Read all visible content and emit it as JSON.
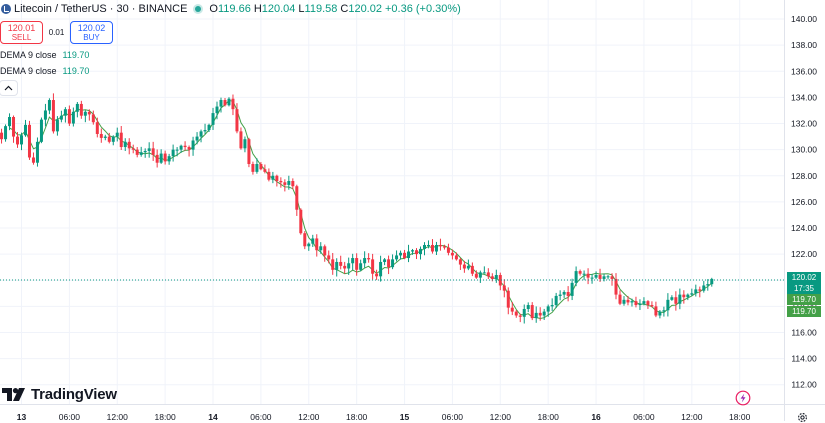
{
  "header": {
    "symbol": "Litecoin / TetherUS · 30 · BINANCE",
    "open_label": "O",
    "open": "119.66",
    "high_label": "H",
    "high": "120.04",
    "low_label": "L",
    "low": "119.58",
    "close_label": "C",
    "close": "120.02",
    "change": "+0.36 (+0.30%)"
  },
  "trade": {
    "sell_price": "120.01",
    "sell_label": "SELL",
    "spread": "0.01",
    "buy_price": "120.02",
    "buy_label": "BUY"
  },
  "indicators": [
    {
      "name": "DEMA 9 close",
      "value": "119.70"
    },
    {
      "name": "DEMA 9 close",
      "value": "119.70"
    }
  ],
  "price_labels": {
    "last": "120.02",
    "countdown": "17:35",
    "dema_1": "119.70",
    "dema_2": "119.70"
  },
  "branding": {
    "name": "TradingView"
  },
  "icons": {
    "collapse": "chevron-up-icon",
    "flash": "lightning-icon",
    "settings": "gear-icon"
  },
  "colors": {
    "up": "#089981",
    "down": "#f23645",
    "dema_line": "#43a047",
    "grid": "#f0f3fa",
    "axis_text": "#131722",
    "last_price_label": "#089981",
    "dema_label": "#43a047"
  },
  "chart_data": {
    "type": "candlestick",
    "y_ticks": [
      "112.00",
      "114.00",
      "116.00",
      "118.00",
      "120.00",
      "122.00",
      "124.00",
      "126.00",
      "128.00",
      "130.00",
      "132.00",
      "134.00",
      "136.00",
      "138.00",
      "140.00"
    ],
    "ylim": [
      110.6,
      141.0
    ],
    "x_ticks": [
      {
        "label": "13",
        "bold": true,
        "t": 0
      },
      {
        "label": "06:00",
        "t": 12
      },
      {
        "label": "12:00",
        "t": 24
      },
      {
        "label": "18:00",
        "t": 36
      },
      {
        "label": "14",
        "bold": true,
        "t": 48
      },
      {
        "label": "06:00",
        "t": 60
      },
      {
        "label": "12:00",
        "t": 72
      },
      {
        "label": "18:00",
        "t": 84
      },
      {
        "label": "15",
        "bold": true,
        "t": 96
      },
      {
        "label": "06:00",
        "t": 108
      },
      {
        "label": "12:00",
        "t": 120
      },
      {
        "label": "18:00",
        "t": 132
      },
      {
        "label": "16",
        "bold": true,
        "t": 144
      },
      {
        "label": "06:00",
        "t": 156
      },
      {
        "label": "12:00",
        "t": 168
      },
      {
        "label": "18:00",
        "t": 180
      }
    ],
    "x_start": -5,
    "grid": true,
    "last_price": 120.02,
    "dema_value": 119.7,
    "closes": [
      130.8,
      131.8,
      132.5,
      131.0,
      130.4,
      131.1,
      131.9,
      129.4,
      129.0,
      130.6,
      132.3,
      133.0,
      133.8,
      131.4,
      132.3,
      132.6,
      133.1,
      132.0,
      132.9,
      133.5,
      132.6,
      132.9,
      132.7,
      132.1,
      131.2,
      130.9,
      131.0,
      130.6,
      131.0,
      131.3,
      130.2,
      130.6,
      130.1,
      130.0,
      129.6,
      129.8,
      129.9,
      130.1,
      129.6,
      129.0,
      129.7,
      129.1,
      129.5,
      130.0,
      130.0,
      130.3,
      130.2,
      130.0,
      130.7,
      131.0,
      131.4,
      131.5,
      131.9,
      132.8,
      133.3,
      133.8,
      133.4,
      133.9,
      133.1,
      131.4,
      130.1,
      130.8,
      128.9,
      128.3,
      128.9,
      128.5,
      128.3,
      127.7,
      128.0,
      127.6,
      127.5,
      127.3,
      127.6,
      127.2,
      125.4,
      123.6,
      122.6,
      122.8,
      123.2,
      122.3,
      122.6,
      121.9,
      121.6,
      120.8,
      121.4,
      121.1,
      120.9,
      121.3,
      121.7,
      120.8,
      121.3,
      121.7,
      121.6,
      120.5,
      120.3,
      121.4,
      121.6,
      121.0,
      121.6,
      121.9,
      122.1,
      121.7,
      122.2,
      122.3,
      122.0,
      122.4,
      122.7,
      122.7,
      122.2,
      122.7,
      122.6,
      122.5,
      122.1,
      121.9,
      121.6,
      121.2,
      120.9,
      121.1,
      120.5,
      120.2,
      120.6,
      120.6,
      120.3,
      120.1,
      120.4,
      119.6,
      119.2,
      117.9,
      117.6,
      117.3,
      117.2,
      117.8,
      118.1,
      117.1,
      117.5,
      117.3,
      117.6,
      118.0,
      118.1,
      118.8,
      118.9,
      119.1,
      118.8,
      119.8,
      120.7,
      120.5,
      120.5,
      120.2,
      120.2,
      120.4,
      120.1,
      120.3,
      120.3,
      120.1,
      118.9,
      118.2,
      118.5,
      118.3,
      118.4,
      118.1,
      118.2,
      118.4,
      118.1,
      118.0,
      117.3,
      117.6,
      117.7,
      118.5,
      118.7,
      118.2,
      118.9,
      118.7,
      118.9,
      119.0,
      119.3,
      119.2,
      119.6,
      119.7,
      120.1
    ]
  }
}
